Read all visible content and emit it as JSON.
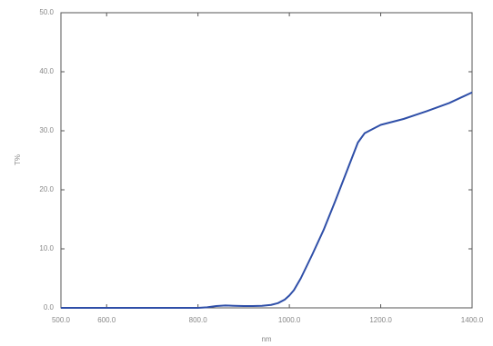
{
  "chart_data": {
    "type": "line",
    "x_label": "nm",
    "y_label": "T%",
    "x": [
      500,
      600,
      700,
      800,
      820,
      840,
      860,
      880,
      900,
      920,
      940,
      960,
      975,
      990,
      1000,
      1010,
      1025,
      1050,
      1075,
      1100,
      1125,
      1150,
      1165,
      1175,
      1185,
      1200,
      1250,
      1300,
      1350,
      1400
    ],
    "series": [
      {
        "name": "T%",
        "color": "#2f4fa8",
        "values": [
          0,
          0,
          0,
          0,
          0.1,
          0.3,
          0.4,
          0.35,
          0.3,
          0.3,
          0.35,
          0.5,
          0.8,
          1.4,
          2.1,
          3.0,
          5.0,
          9.0,
          13.2,
          18.0,
          23.0,
          28.0,
          29.6,
          30.0,
          30.4,
          31.0,
          32.0,
          33.3,
          34.7,
          36.5
        ]
      }
    ],
    "xlim": [
      500,
      1400
    ],
    "xticks": [
      {
        "value": 500,
        "label": "500.0"
      },
      {
        "value": 600,
        "label": "600.0"
      },
      {
        "value": 800,
        "label": "800.0"
      },
      {
        "value": 1000,
        "label": "1000.0"
      },
      {
        "value": 1200,
        "label": "1200.0"
      },
      {
        "value": 1400,
        "label": "1400.0"
      }
    ],
    "ylim": [
      0,
      50
    ],
    "yticks": [
      {
        "value": 0,
        "label": "0.0"
      },
      {
        "value": 10,
        "label": "10.0"
      },
      {
        "value": 20,
        "label": "20.0"
      },
      {
        "value": 30,
        "label": "30.0"
      },
      {
        "value": 40,
        "label": "40.0"
      },
      {
        "value": 50,
        "label": "50.0"
      }
    ]
  }
}
